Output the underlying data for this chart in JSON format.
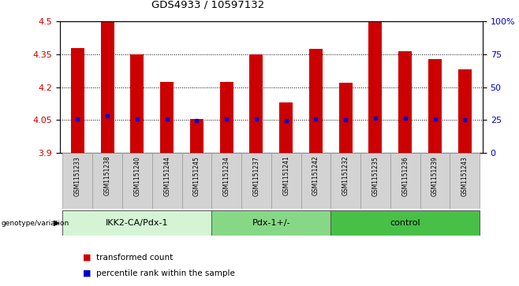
{
  "title": "GDS4933 / 10597132",
  "samples": [
    "GSM1151233",
    "GSM1151238",
    "GSM1151240",
    "GSM1151244",
    "GSM1151245",
    "GSM1151234",
    "GSM1151237",
    "GSM1151241",
    "GSM1151242",
    "GSM1151232",
    "GSM1151235",
    "GSM1151236",
    "GSM1151239",
    "GSM1151243"
  ],
  "bar_heights": [
    4.38,
    4.5,
    4.35,
    4.225,
    4.055,
    4.225,
    4.35,
    4.13,
    4.375,
    4.22,
    4.5,
    4.365,
    4.33,
    4.28
  ],
  "blue_dots": [
    4.055,
    4.068,
    4.055,
    4.055,
    4.048,
    4.055,
    4.055,
    4.048,
    4.055,
    4.052,
    4.058,
    4.058,
    4.055,
    4.052
  ],
  "bar_bottom": 3.9,
  "ylim": [
    3.9,
    4.5
  ],
  "yticks_left": [
    3.9,
    4.05,
    4.2,
    4.35,
    4.5
  ],
  "yticks_right": [
    0,
    25,
    50,
    75,
    100
  ],
  "groups": [
    {
      "label": "IKK2-CA/Pdx-1",
      "start": 0,
      "end": 5,
      "color": "#d4f4d4"
    },
    {
      "label": "Pdx-1+/-",
      "start": 5,
      "end": 9,
      "color": "#86d886"
    },
    {
      "label": "control",
      "start": 9,
      "end": 14,
      "color": "#48c048"
    }
  ],
  "bar_color": "#cc0000",
  "dot_color": "#0000cc",
  "left_label_color": "#cc0000",
  "right_label_color": "#0000cc",
  "grid_color": "#000000",
  "tick_label_bg": "#d3d3d3",
  "legend_items": [
    {
      "color": "#cc0000",
      "label": "transformed count"
    },
    {
      "color": "#0000cc",
      "label": "percentile rank within the sample"
    }
  ]
}
